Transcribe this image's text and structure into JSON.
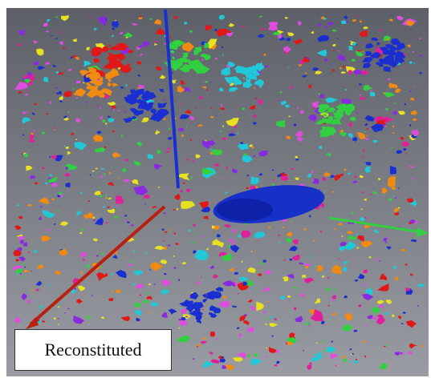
{
  "label": "Reconstituted"
}
